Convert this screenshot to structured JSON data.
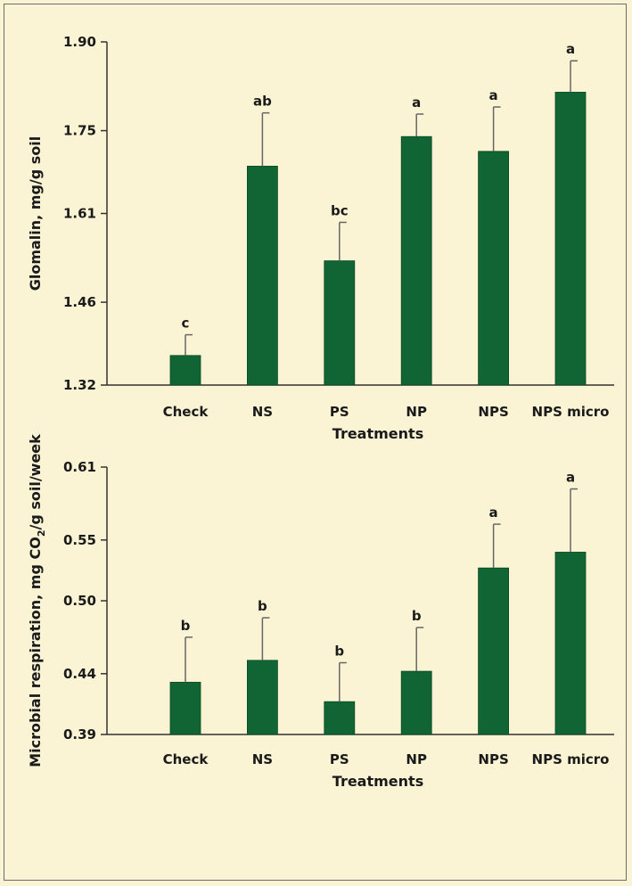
{
  "colors": {
    "background": "#fbf4d4",
    "bar": "#116433",
    "axis": "#333333",
    "error": "#666666"
  },
  "chart_data": [
    {
      "type": "bar",
      "categories": [
        "Check",
        "NS",
        "PS",
        "NP",
        "NPS",
        "NPS micro"
      ],
      "values": [
        1.37,
        1.69,
        1.53,
        1.74,
        1.715,
        1.815
      ],
      "errors": [
        0.035,
        0.09,
        0.065,
        0.038,
        0.075,
        0.053
      ],
      "significance": [
        "c",
        "ab",
        "bc",
        "a",
        "a",
        "a"
      ],
      "yticks": [
        "1.32",
        "1.46",
        "1.61",
        "1.75",
        "1.90"
      ],
      "ylim": [
        1.32,
        1.9
      ],
      "ylabel": "Glomalin, mg/g soil",
      "xlabel": "Treatments"
    },
    {
      "type": "bar",
      "categories": [
        "Check",
        "NS",
        "PS",
        "NP",
        "NPS",
        "NPS micro"
      ],
      "values": [
        0.433,
        0.451,
        0.417,
        0.442,
        0.527,
        0.54
      ],
      "errors": [
        0.037,
        0.035,
        0.032,
        0.036,
        0.036,
        0.052
      ],
      "significance": [
        "b",
        "b",
        "b",
        "b",
        "a",
        "a"
      ],
      "yticks": [
        "0.39",
        "0.44",
        "0.50",
        "0.55",
        "0.61"
      ],
      "ylim": [
        0.39,
        0.61
      ],
      "ylabel": {
        "pre": "Microbial respiration, mg CO",
        "sub": "2",
        "post": "/g soil/week"
      },
      "xlabel": "Treatments"
    }
  ]
}
